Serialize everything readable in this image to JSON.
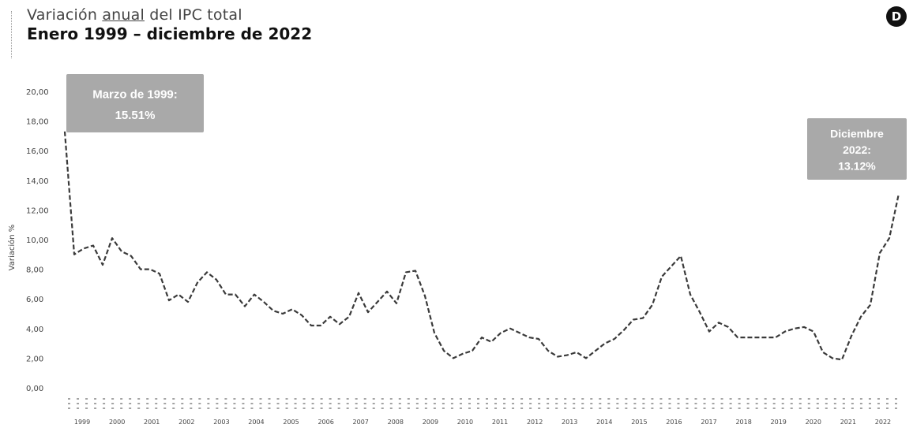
{
  "header": {
    "title_pre": "Variación ",
    "title_underlined": "anual",
    "title_post": " del IPC total",
    "subtitle": "Enero 1999 – diciembre de 2022"
  },
  "logo": {
    "icon": "brand-logo-icon",
    "letter": "D"
  },
  "colors": {
    "line": "#3a3a3a",
    "callout_bg": "#a9a9a9",
    "callout_text": "#ffffff"
  },
  "chart_data": {
    "type": "line",
    "title": "",
    "xlabel": "",
    "ylabel": "Variación %",
    "ylim": [
      0,
      20
    ],
    "ytick_labels": [
      "0,00",
      "2,00",
      "4,00",
      "6,00",
      "8,00",
      "10,00",
      "12,00",
      "14,00",
      "16,00",
      "18,00",
      "20,00"
    ],
    "year_labels": [
      "1999",
      "2000",
      "2001",
      "2002",
      "2003",
      "2004",
      "2005",
      "2006",
      "2007",
      "2008",
      "2009",
      "2010",
      "2011",
      "2012",
      "2013",
      "2014",
      "2015",
      "2016",
      "2017",
      "2018",
      "2019",
      "2020",
      "2021",
      "2022"
    ],
    "line_style": "dashed",
    "grid": false,
    "series": [
      {
        "values": [
          17.3,
          9.0,
          9.4,
          9.6,
          8.3,
          10.1,
          9.2,
          8.9,
          8.0,
          8.0,
          7.7,
          5.9,
          6.3,
          5.8,
          7.1,
          7.8,
          7.3,
          6.3,
          6.3,
          5.5,
          6.3,
          5.8,
          5.2,
          5.0,
          5.3,
          4.9,
          4.2,
          4.2,
          4.8,
          4.3,
          4.8,
          6.4,
          5.1,
          5.8,
          6.5,
          5.7,
          7.8,
          7.9,
          6.2,
          3.7,
          2.5,
          2.0,
          2.3,
          2.5,
          3.4,
          3.1,
          3.7,
          4.0,
          3.7,
          3.4,
          3.3,
          2.5,
          2.1,
          2.2,
          2.4,
          2.0,
          2.5,
          3.0,
          3.3,
          3.9,
          4.6,
          4.7,
          5.6,
          7.5,
          8.2,
          8.9,
          6.3,
          5.1,
          3.8,
          4.4,
          4.1,
          3.4,
          3.4,
          3.4,
          3.4,
          3.4,
          3.8,
          4.0,
          4.1,
          3.8,
          2.4,
          2.0,
          1.9,
          3.5,
          4.8,
          5.6,
          9.1,
          10.1,
          13.1
        ]
      }
    ],
    "annotations": [
      {
        "lines": [
          "Marzo de 1999:",
          "15.51%"
        ]
      },
      {
        "lines": [
          "Diciembre",
          "2022:",
          "13.12%"
        ]
      }
    ]
  }
}
